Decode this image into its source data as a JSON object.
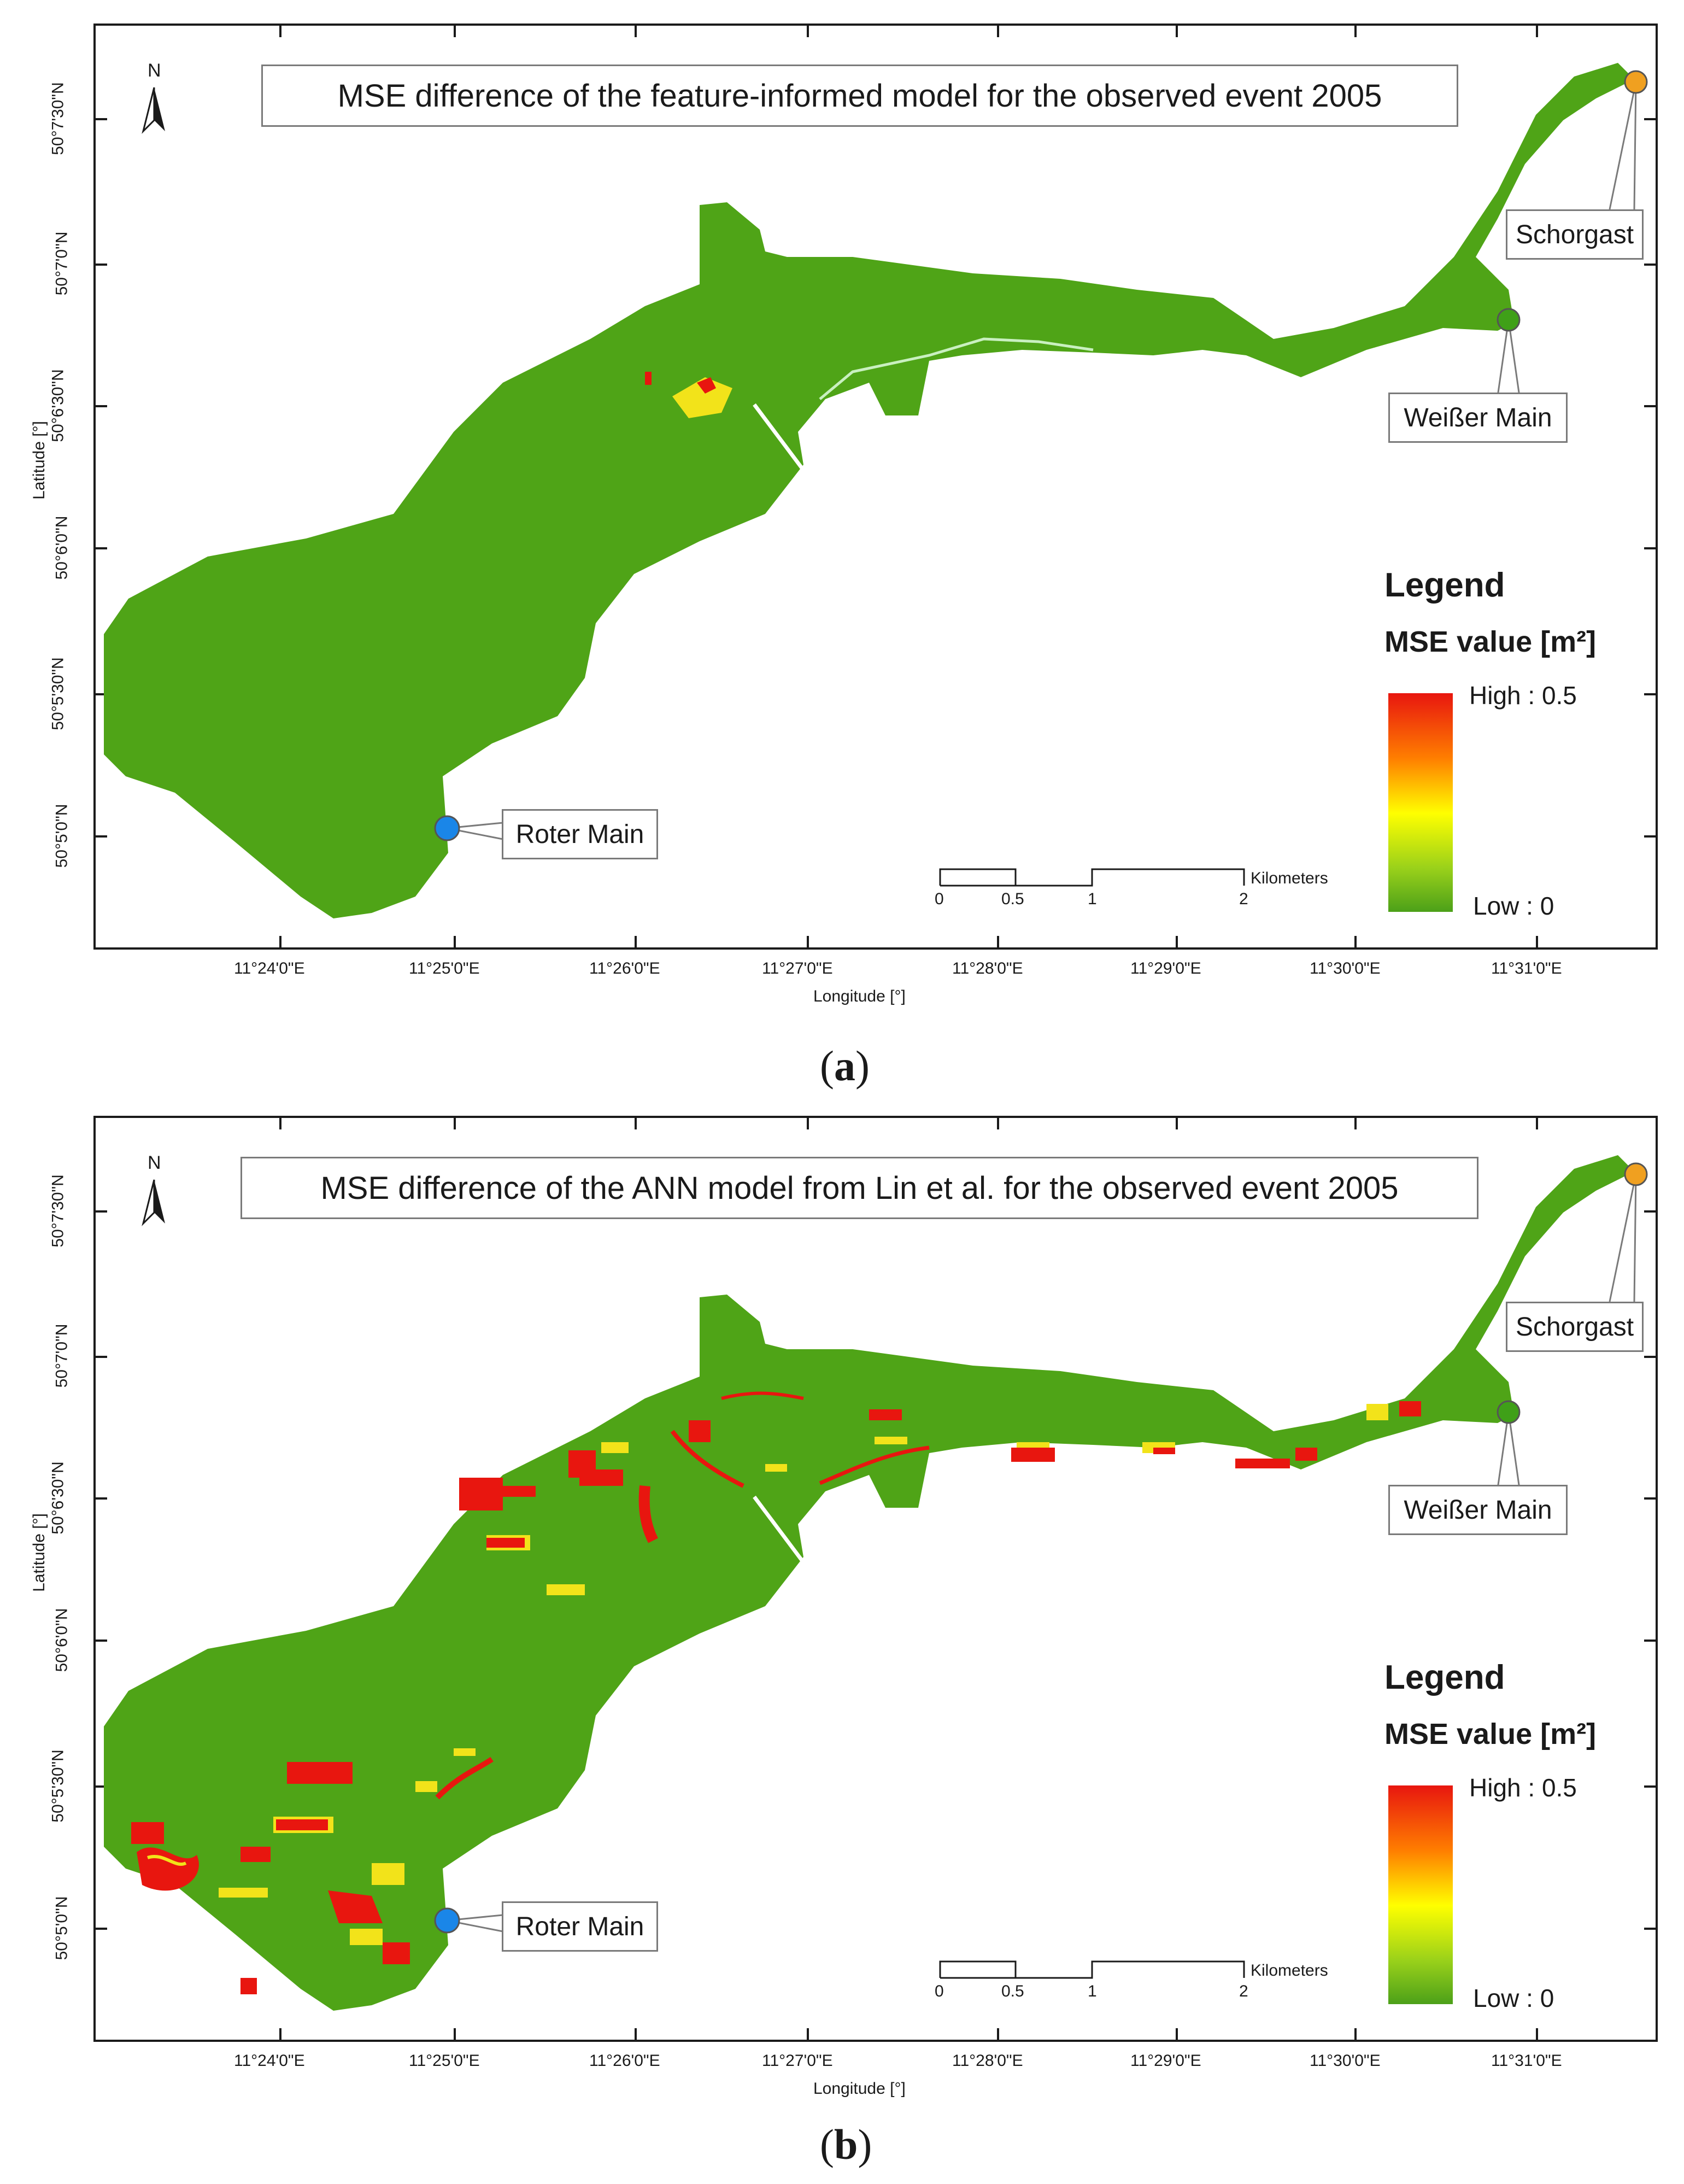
{
  "panels": [
    {
      "id": "a",
      "title": "MSE difference of the feature-informed model for the observed event 2005",
      "caption_letter": "a",
      "variant": "feature"
    },
    {
      "id": "b",
      "title": "MSE difference of the ANN model from Lin et al. for the observed event 2005",
      "caption_letter": "b",
      "variant": "ann"
    }
  ],
  "common": {
    "north_label": "N",
    "lat_axis_title": "Latitude [°]",
    "lon_axis_title": "Longitude [°]",
    "lat_ticks": [
      "50°7'30\"N",
      "50°7'0\"N",
      "50°6'30\"N",
      "50°6'0\"N",
      "50°5'30\"N",
      "50°5'0\"N"
    ],
    "lon_ticks": [
      "11°24'0\"E",
      "11°25'0\"E",
      "11°26'0\"E",
      "11°27'0\"E",
      "11°28'0\"E",
      "11°29'0\"E",
      "11°30'0\"E",
      "11°31'0\"E"
    ],
    "gauges": {
      "schorgast": "Schorgast",
      "weisser_main": "Weißer Main",
      "roter_main": "Roter Main"
    },
    "legend": {
      "title": "Legend",
      "subtitle": "MSE value [m²]",
      "high": "High : 0.5",
      "low": "Low : 0",
      "colors": [
        "#e8160f",
        "#ff7f00",
        "#ffff00",
        "#9ad11a",
        "#4ca019"
      ]
    },
    "scale": {
      "ticks": [
        "0",
        "0.5",
        "1",
        "2"
      ],
      "unit": "Kilometers"
    },
    "colors": {
      "river_green": "#4fa417",
      "error_red": "#e8160f",
      "error_yellow": "#f2e31a",
      "gauge_orange": "#f0a020",
      "gauge_green": "#3fa018",
      "gauge_blue": "#1a86e8"
    }
  }
}
